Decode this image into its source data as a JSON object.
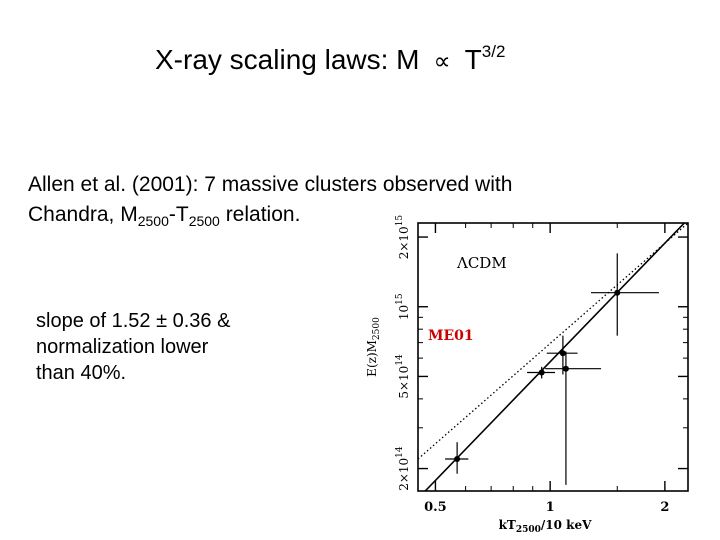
{
  "slide": {
    "title_main": "X-ray scaling laws: M",
    "title_symbol": "∝",
    "title_var": "T",
    "title_exp": "3/2",
    "intro_line1": "Allen et al. (2001): 7 massive clusters observed with",
    "intro_line2_pre": "Chandra, M",
    "intro_sub1": "2500",
    "intro_mid": "-T",
    "intro_sub2": "2500",
    "intro_post": " relation.",
    "bullet_line1": "slope of 1.52 ± 0.36 &",
    "bullet_line2": "normalization lower",
    "bullet_line3": "than 40%."
  },
  "chart_data": {
    "type": "scatter",
    "xscale": "log",
    "yscale": "log",
    "xlim": [
      0.45,
      2.3
    ],
    "ylim": [
      160000000000000.0,
      2300000000000000.0
    ],
    "xlabel_main": "kT",
    "xlabel_sub": "2500",
    "xlabel_rest": "/10 keV",
    "ylabel_main": "E(z)M",
    "ylabel_sub": "2500",
    "x_ticks": [
      {
        "value": 0.5,
        "label": "0.5"
      },
      {
        "value": 1,
        "label": "1"
      },
      {
        "value": 2,
        "label": "2"
      }
    ],
    "y_ticks": [
      {
        "value": 200000000000000.0,
        "label": "2×10",
        "exp": "14"
      },
      {
        "value": 500000000000000.0,
        "label": "5×10",
        "exp": "14"
      },
      {
        "value": 1000000000000000.0,
        "label": "10",
        "exp": "15"
      },
      {
        "value": 2000000000000000.0,
        "label": "2×10",
        "exp": "15"
      }
    ],
    "model_label": "ΛCDM",
    "fit_label": "ME01",
    "fit_label_color": "#cc0000",
    "points": [
      {
        "x": 0.57,
        "y": 220000000000000.0,
        "xerr": [
          0.53,
          0.61
        ],
        "yerr": [
          190000000000000.0,
          260000000000000.0
        ]
      },
      {
        "x": 0.95,
        "y": 520000000000000.0,
        "xerr": [
          0.87,
          1.03
        ],
        "yerr": [
          490000000000000.0,
          550000000000000.0
        ]
      },
      {
        "x": 1.08,
        "y": 630000000000000.0,
        "xerr": [
          0.98,
          1.18
        ],
        "yerr": [
          510000000000000.0,
          750000000000000.0
        ]
      },
      {
        "x": 1.1,
        "y": 540000000000000.0,
        "xerr": [
          0.97,
          1.36
        ],
        "yerr": [
          170000000000000.0,
          640000000000000.0
        ]
      },
      {
        "x": 1.5,
        "y": 1150000000000000.0,
        "xerr": [
          1.28,
          1.93
        ],
        "yerr": [
          750000000000000.0,
          1700000000000000.0
        ]
      }
    ],
    "lines": [
      {
        "name": "ΛCDM",
        "style": "dotted",
        "points": [
          [
            0.45,
            220000000000000.0
          ],
          [
            2.3,
            2300000000000000.0
          ]
        ]
      },
      {
        "name": "ME01",
        "style": "solid",
        "points": [
          [
            0.47,
            160000000000000.0
          ],
          [
            2.25,
            2300000000000000.0
          ]
        ]
      }
    ]
  }
}
